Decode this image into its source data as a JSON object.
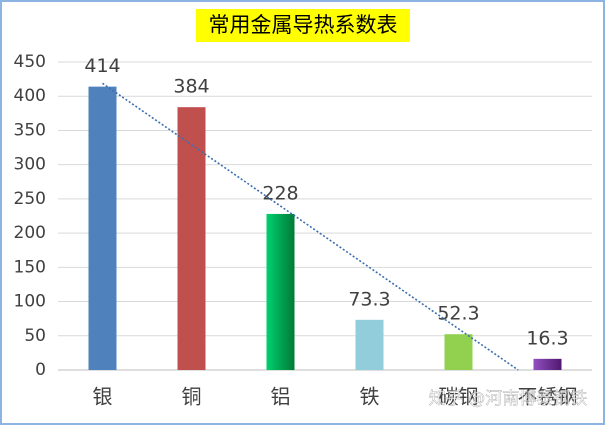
{
  "chart_data": {
    "type": "bar",
    "title": "常用金属导热系数表",
    "categories": [
      "银",
      "铜",
      "铝",
      "铁",
      "碳钢",
      "不锈钢"
    ],
    "values": [
      414,
      384,
      228,
      73.3,
      52.3,
      16.3
    ],
    "colors": [
      "#4f81bd",
      "#c0504d",
      "#00b050",
      "#92cddc",
      "#92d050",
      "#7030a0"
    ],
    "ylim": [
      0,
      450
    ],
    "yticks": [
      0,
      50,
      100,
      150,
      200,
      250,
      300,
      350,
      400,
      450
    ],
    "grid": true,
    "trendline": "linear",
    "trendline_color": "#3a6fb0",
    "watermark": "知乎 @河南博泰钢铁"
  }
}
